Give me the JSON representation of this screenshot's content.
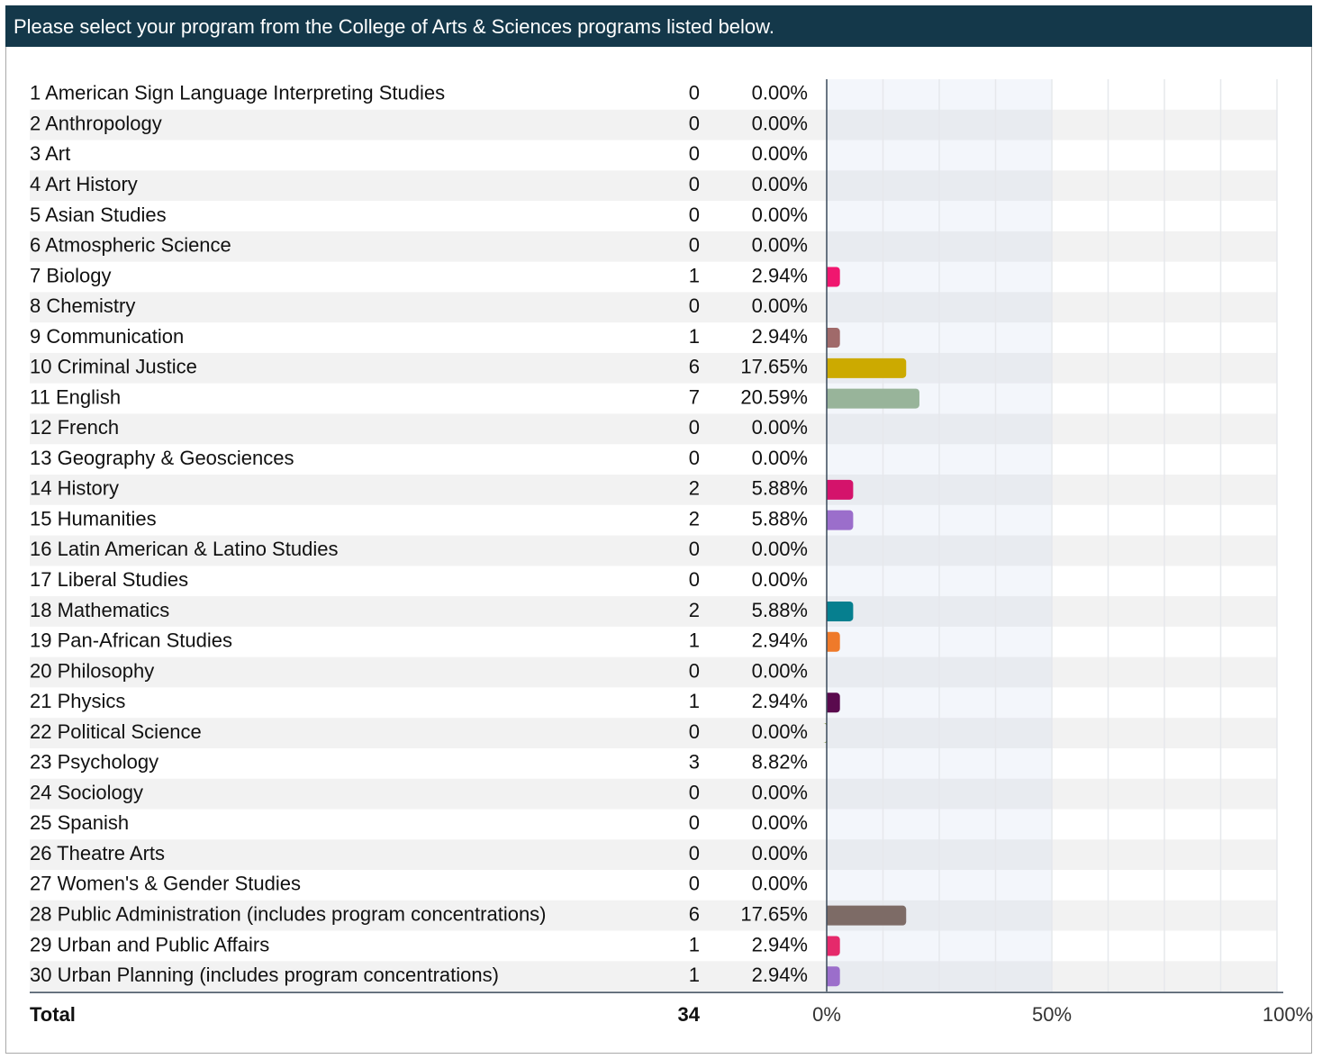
{
  "chart_data": {
    "type": "bar",
    "title": "Please select your program from the College of Arts & Sciences programs listed below.",
    "categories": [
      "1 American Sign Language Interpreting Studies",
      "2 Anthropology",
      "3 Art",
      "4 Art History",
      "5 Asian Studies",
      "6 Atmospheric Science",
      "7 Biology",
      "8 Chemistry",
      "9 Communication",
      "10 Criminal Justice",
      "11 English",
      "12 French",
      "13 Geography & Geosciences",
      "14 History",
      "15 Humanities",
      "16 Latin American & Latino Studies",
      "17 Liberal Studies",
      "18 Mathematics",
      "19 Pan-African Studies",
      "20 Philosophy",
      "21 Physics",
      "22 Political Science",
      "23 Psychology",
      "24 Sociology",
      "25 Spanish",
      "26 Theatre Arts",
      "27 Women's & Gender Studies",
      "28 Public Administration (includes program concentrations)",
      "29 Urban and Public Affairs",
      "30 Urban Planning (includes program concentrations)"
    ],
    "counts": [
      0,
      0,
      0,
      0,
      0,
      0,
      1,
      0,
      1,
      6,
      7,
      0,
      0,
      2,
      2,
      0,
      0,
      2,
      1,
      0,
      1,
      0,
      3,
      0,
      0,
      0,
      0,
      6,
      1,
      1
    ],
    "values": [
      0,
      0,
      0,
      0,
      0,
      0,
      2.94,
      0,
      2.94,
      17.65,
      20.59,
      0,
      0,
      5.88,
      5.88,
      0,
      0,
      5.88,
      2.94,
      0,
      2.94,
      0,
      8.82,
      0,
      0,
      0,
      0,
      17.65,
      2.94,
      2.94
    ],
    "value_labels": [
      "0.00%",
      "0.00%",
      "0.00%",
      "0.00%",
      "0.00%",
      "0.00%",
      "2.94%",
      "0.00%",
      "2.94%",
      "17.65%",
      "20.59%",
      "0.00%",
      "0.00%",
      "5.88%",
      "5.88%",
      "0.00%",
      "0.00%",
      "5.88%",
      "2.94%",
      "0.00%",
      "2.94%",
      "0.00%",
      "8.82%",
      "0.00%",
      "0.00%",
      "0.00%",
      "0.00%",
      "17.65%",
      "2.94%",
      "2.94%"
    ],
    "colors": [
      null,
      null,
      null,
      null,
      null,
      null,
      "#f0166f",
      null,
      "#a06a6a",
      "#ccaa00",
      "#98b49a",
      null,
      null,
      "#d4136b",
      "#9b6ecb",
      null,
      null,
      "#067f8f",
      "#ef7a2a",
      null,
      "#5a0a4e",
      "#99a864",
      null,
      null,
      null,
      null,
      null,
      "#7d6b66",
      "#e5296b",
      "#9b6ecb"
    ],
    "total_label": "Total",
    "total": 34,
    "xlim": [
      0,
      100
    ],
    "xticks": [
      {
        "value": 0,
        "label": "0%"
      },
      {
        "value": 50,
        "label": "50%"
      },
      {
        "value": 100,
        "label": "100%"
      }
    ],
    "minor_xticks": [
      12.5,
      25,
      37.5,
      62.5,
      75,
      87.5
    ],
    "grid": true
  }
}
